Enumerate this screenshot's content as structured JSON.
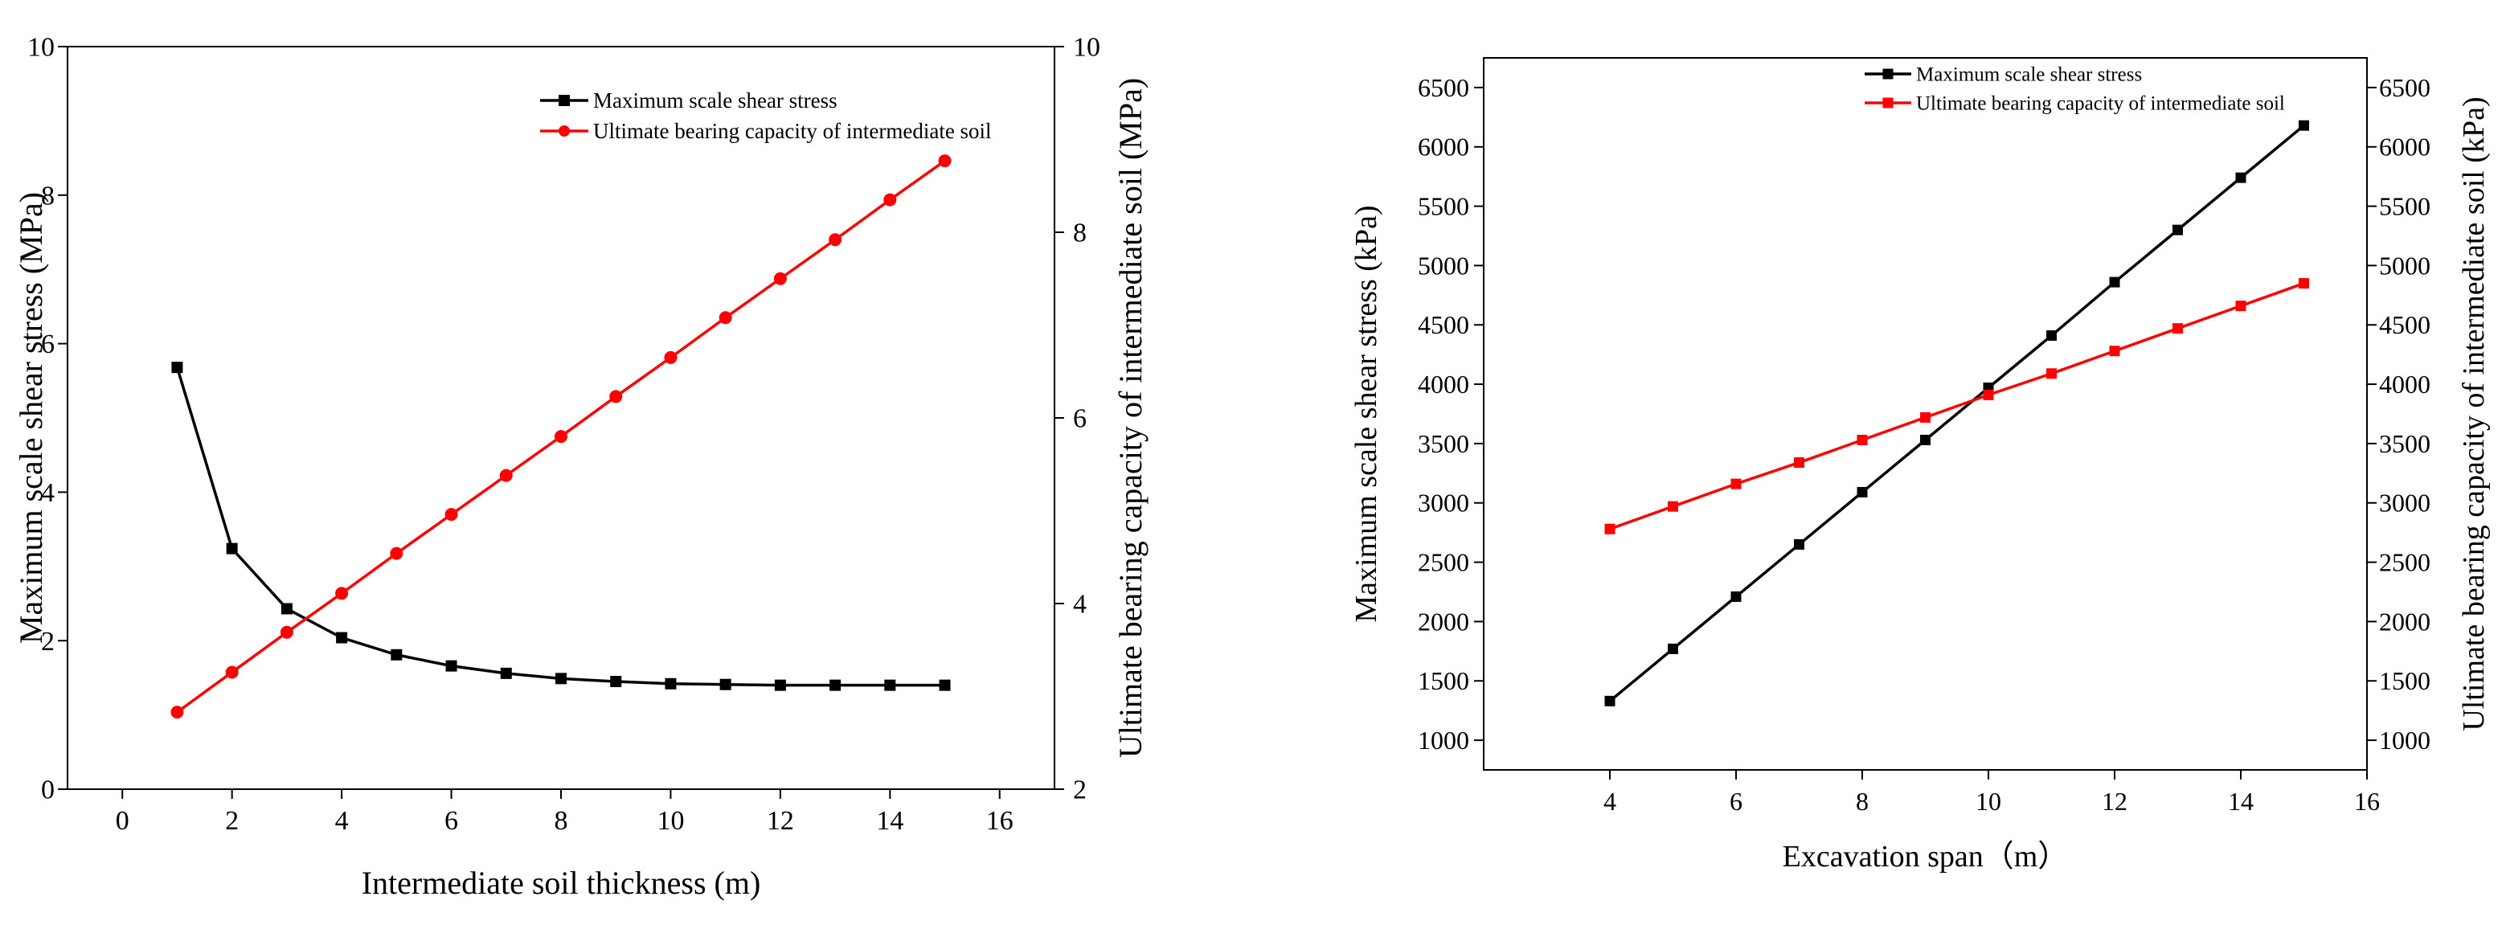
{
  "chart_data": [
    {
      "type": "line",
      "xlabel": "Intermediate soil thickness (m)",
      "ylabel_left": "Maximum scale shear stress (MPa)",
      "ylabel_right": "Ultimate bearing capacity of intermediate soil (MPa)",
      "xlim": [
        -1,
        17
      ],
      "ylim_left": [
        0,
        10
      ],
      "ylim_right": [
        2,
        10
      ],
      "x_ticks": [
        "0",
        "2",
        "4",
        "6",
        "8",
        "10",
        "12",
        "14",
        "16"
      ],
      "y_ticks_left": [
        "0",
        "2",
        "4",
        "6",
        "8",
        "10"
      ],
      "y_ticks_right": [
        "2",
        "4",
        "6",
        "8",
        "10"
      ],
      "legend_position": "top-right",
      "series": [
        {
          "name": "Maximum scale shear stress",
          "axis": "left",
          "color": "#000000",
          "marker": "square",
          "x": [
            1,
            2,
            3,
            4,
            5,
            6,
            7,
            8,
            9,
            10,
            11,
            12,
            13,
            14,
            15
          ],
          "values": [
            5.68,
            3.24,
            2.43,
            2.04,
            1.81,
            1.66,
            1.56,
            1.49,
            1.45,
            1.42,
            1.41,
            1.4,
            1.4,
            1.4,
            1.4
          ]
        },
        {
          "name": "Ultimate bearing capacity of intermediate soil",
          "axis": "right",
          "color": "#ff0000",
          "marker": "circle",
          "x": [
            1,
            2,
            3,
            4,
            5,
            6,
            7,
            8,
            9,
            10,
            11,
            12,
            13,
            14,
            15
          ],
          "values": [
            2.83,
            3.26,
            3.69,
            4.11,
            4.54,
            4.96,
            5.38,
            5.8,
            6.23,
            6.65,
            7.08,
            7.5,
            7.92,
            8.35,
            8.77
          ]
        }
      ]
    },
    {
      "type": "line",
      "xlabel": "Excavation span（m）",
      "ylabel_left": "Maximum scale shear stress (kPa)",
      "ylabel_right": "Ultimate bearing capacity of intermediate soil (kPa)",
      "xlim": [
        2,
        16
      ],
      "ylim_left": [
        750,
        6750
      ],
      "ylim_right": [
        750,
        6750
      ],
      "x_ticks": [
        "4",
        "6",
        "8",
        "10",
        "12",
        "14",
        "16"
      ],
      "y_ticks_left": [
        "1000",
        "1500",
        "2000",
        "2500",
        "3000",
        "3500",
        "4000",
        "4500",
        "5000",
        "5500",
        "6000",
        "6500"
      ],
      "y_ticks_right": [
        "1000",
        "1500",
        "2000",
        "2500",
        "3000",
        "3500",
        "4000",
        "4500",
        "5000",
        "5500",
        "6000",
        "6500"
      ],
      "legend_position": "top-right",
      "series": [
        {
          "name": "Maximum scale shear stress",
          "axis": "left",
          "color": "#000000",
          "marker": "square",
          "x": [
            4,
            5,
            6,
            7,
            8,
            9,
            10,
            11,
            12,
            13,
            14,
            15
          ],
          "values": [
            1330,
            1770,
            2210,
            2650,
            3090,
            3530,
            3970,
            4410,
            4860,
            5300,
            5740,
            6180
          ]
        },
        {
          "name": "Ultimate bearing capacity of intermediate soil",
          "axis": "right",
          "color": "#ff0000",
          "marker": "square",
          "x": [
            4,
            5,
            6,
            7,
            8,
            9,
            10,
            11,
            12,
            13,
            14,
            15
          ],
          "values": [
            2780,
            2970,
            3160,
            3340,
            3530,
            3720,
            3910,
            4090,
            4280,
            4470,
            4660,
            4850
          ]
        }
      ]
    }
  ]
}
